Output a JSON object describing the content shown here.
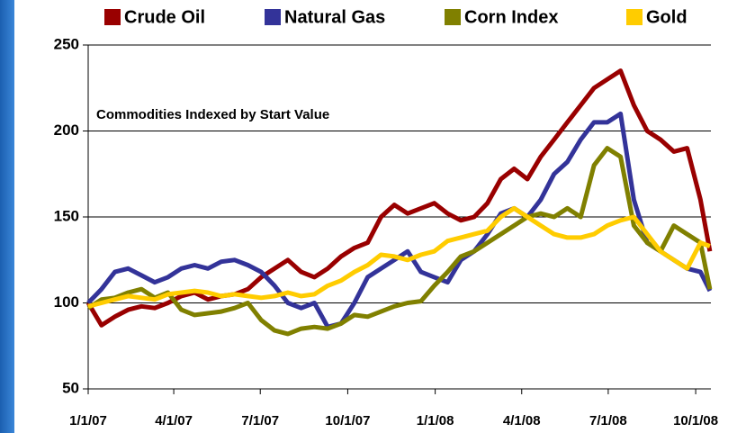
{
  "chart_data": {
    "type": "line",
    "title": "Commodities Indexed by Start Value",
    "x": [
      "1/1/07",
      "1/15/07",
      "1/29/07",
      "2/12/07",
      "2/26/07",
      "3/12/07",
      "3/26/07",
      "4/9/07",
      "4/23/07",
      "5/7/07",
      "5/21/07",
      "6/4/07",
      "6/18/07",
      "7/2/07",
      "7/16/07",
      "7/30/07",
      "8/13/07",
      "8/27/07",
      "9/10/07",
      "9/24/07",
      "10/8/07",
      "10/22/07",
      "11/5/07",
      "11/19/07",
      "12/3/07",
      "12/17/07",
      "12/31/07",
      "1/14/08",
      "1/28/08",
      "2/11/08",
      "2/25/08",
      "3/10/08",
      "3/24/08",
      "4/7/08",
      "4/21/08",
      "5/5/08",
      "5/19/08",
      "6/2/08",
      "6/16/08",
      "6/30/08",
      "7/14/08",
      "7/28/08",
      "8/11/08",
      "8/25/08",
      "9/8/08",
      "9/22/08",
      "10/6/08",
      "10/16/08"
    ],
    "series": [
      {
        "name": "Crude Oil",
        "color": "#990000",
        "values": [
          100,
          87,
          92,
          96,
          98,
          97,
          100,
          104,
          106,
          102,
          104,
          105,
          108,
          115,
          120,
          125,
          118,
          115,
          120,
          127,
          132,
          135,
          150,
          157,
          152,
          155,
          158,
          152,
          148,
          150,
          158,
          172,
          178,
          172,
          185,
          195,
          205,
          215,
          225,
          230,
          235,
          215,
          200,
          195,
          188,
          190,
          160,
          130
        ]
      },
      {
        "name": "Natural Gas",
        "color": "#333399",
        "values": [
          100,
          108,
          118,
          120,
          116,
          112,
          115,
          120,
          122,
          120,
          124,
          125,
          122,
          118,
          110,
          100,
          97,
          100,
          86,
          88,
          100,
          115,
          120,
          125,
          130,
          118,
          115,
          112,
          125,
          130,
          140,
          152,
          155,
          150,
          160,
          175,
          182,
          195,
          205,
          205,
          210,
          160,
          135,
          130,
          125,
          120,
          118,
          107
        ]
      },
      {
        "name": "Corn Index",
        "color": "#808000",
        "values": [
          97,
          102,
          103,
          106,
          108,
          103,
          106,
          96,
          93,
          94,
          95,
          97,
          100,
          90,
          84,
          82,
          85,
          86,
          85,
          88,
          93,
          92,
          95,
          98,
          100,
          101,
          110,
          118,
          127,
          130,
          135,
          140,
          145,
          150,
          152,
          150,
          155,
          150,
          180,
          190,
          185,
          145,
          135,
          130,
          145,
          140,
          135,
          108
        ]
      },
      {
        "name": "Gold",
        "color": "#ffcc00",
        "values": [
          98,
          100,
          102,
          104,
          103,
          102,
          105,
          106,
          107,
          106,
          104,
          105,
          104,
          103,
          104,
          106,
          104,
          105,
          110,
          113,
          118,
          122,
          128,
          127,
          125,
          128,
          130,
          136,
          138,
          140,
          142,
          150,
          155,
          150,
          145,
          140,
          138,
          138,
          140,
          145,
          148,
          150,
          140,
          130,
          125,
          120,
          135,
          133
        ]
      }
    ],
    "xlim": [
      "1/1/07",
      "10/17/08"
    ],
    "xticks": [
      "1/1/07",
      "4/1/07",
      "7/1/07",
      "10/1/07",
      "1/1/08",
      "4/1/08",
      "7/1/08",
      "10/1/08"
    ],
    "ylim": [
      50,
      250
    ],
    "yticks": [
      50,
      100,
      150,
      200,
      250
    ],
    "grid": true,
    "legend": "top"
  }
}
